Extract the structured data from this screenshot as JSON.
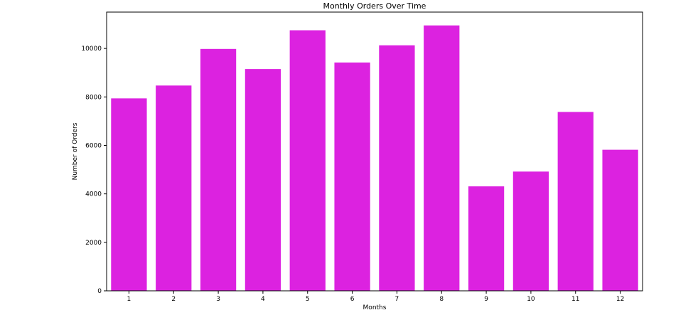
{
  "chart_data": {
    "type": "bar",
    "title": "Monthly Orders Over Time",
    "xlabel": "Months",
    "ylabel": "Number of Orders",
    "categories": [
      "1",
      "2",
      "3",
      "4",
      "5",
      "6",
      "7",
      "8",
      "9",
      "10",
      "11",
      "12"
    ],
    "values": [
      7940,
      8470,
      9980,
      9150,
      10750,
      9420,
      10130,
      10950,
      4310,
      4920,
      7380,
      5820
    ],
    "ylim": [
      0,
      11500
    ],
    "yticks": [
      0,
      2000,
      4000,
      6000,
      8000,
      10000
    ],
    "yticklabels": [
      "0",
      "2000",
      "4000",
      "6000",
      "8000",
      "10000"
    ],
    "grid": false,
    "legend": "none",
    "bar_color": "#dc22e0",
    "axis_color": "#000000"
  }
}
